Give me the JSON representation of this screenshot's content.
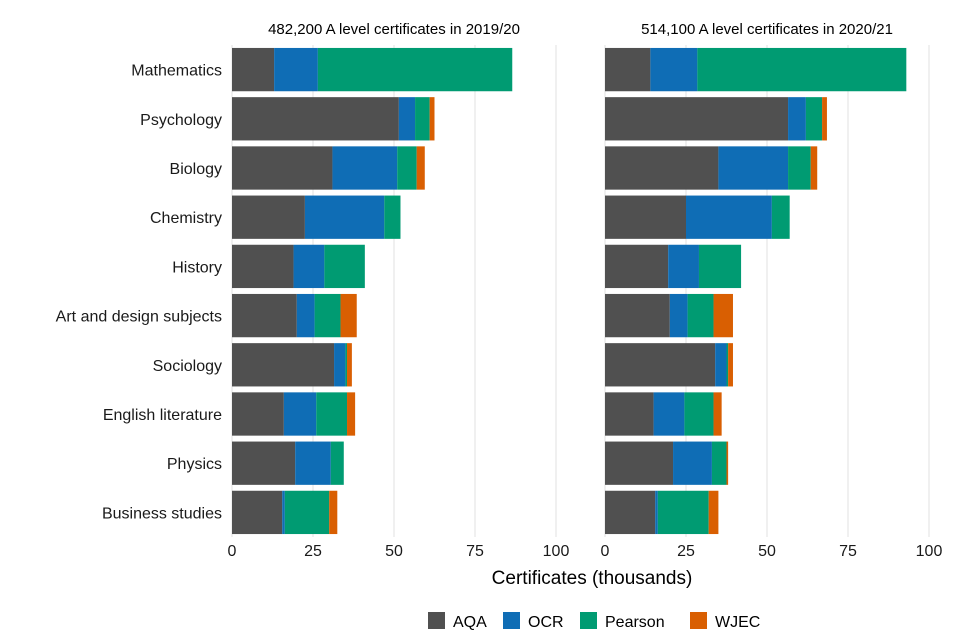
{
  "chart_data": {
    "type": "bar",
    "orientation": "horizontal",
    "stacked": true,
    "xlabel": "Certificates (thousands)",
    "xlim": [
      0,
      100
    ],
    "xticks": [
      0,
      25,
      50,
      75,
      100
    ],
    "categories": [
      "Mathematics",
      "Psychology",
      "Biology",
      "Chemistry",
      "History",
      "Art and design subjects",
      "Sociology",
      "English literature",
      "Physics",
      "Business studies"
    ],
    "legend": [
      {
        "name": "AQA",
        "color": "#505050"
      },
      {
        "name": "OCR",
        "color": "#0f6db5"
      },
      {
        "name": "Pearson",
        "color": "#009b72"
      },
      {
        "name": "WJEC",
        "color": "#d95f02"
      }
    ],
    "legend_position": "bottom",
    "panels": [
      {
        "title": "482,200 A level certificates in 2019/20",
        "series": [
          {
            "name": "AQA",
            "values": [
              13.0,
              51.5,
              31.0,
              22.5,
              19.0,
              20.0,
              31.5,
              16.0,
              19.5,
              15.5
            ]
          },
          {
            "name": "OCR",
            "values": [
              13.5,
              5.0,
              20.0,
              24.5,
              9.5,
              5.5,
              3.5,
              10.0,
              11.0,
              0.8
            ]
          },
          {
            "name": "Pearson",
            "values": [
              60.0,
              4.5,
              6.0,
              5.0,
              12.5,
              8.0,
              0.5,
              9.5,
              4.0,
              13.7
            ]
          },
          {
            "name": "WJEC",
            "values": [
              0,
              1.5,
              2.5,
              0,
              0,
              5.0,
              1.5,
              2.5,
              0,
              2.5
            ]
          }
        ]
      },
      {
        "title": "514,100 A level certificates in 2020/21",
        "series": [
          {
            "name": "AQA",
            "values": [
              14.0,
              56.5,
              35.0,
              25.0,
              19.5,
              20.0,
              34.0,
              15.0,
              21.0,
              15.5
            ]
          },
          {
            "name": "OCR",
            "values": [
              14.5,
              5.5,
              21.5,
              26.5,
              9.5,
              5.5,
              3.5,
              9.5,
              12.0,
              0.8
            ]
          },
          {
            "name": "Pearson",
            "values": [
              64.5,
              5.0,
              7.0,
              5.5,
              13.0,
              8.0,
              0.5,
              9.0,
              4.5,
              15.7
            ]
          },
          {
            "name": "WJEC",
            "values": [
              0,
              1.5,
              2.0,
              0,
              0,
              6.0,
              1.5,
              2.5,
              0.5,
              3.0
            ]
          }
        ]
      }
    ]
  }
}
